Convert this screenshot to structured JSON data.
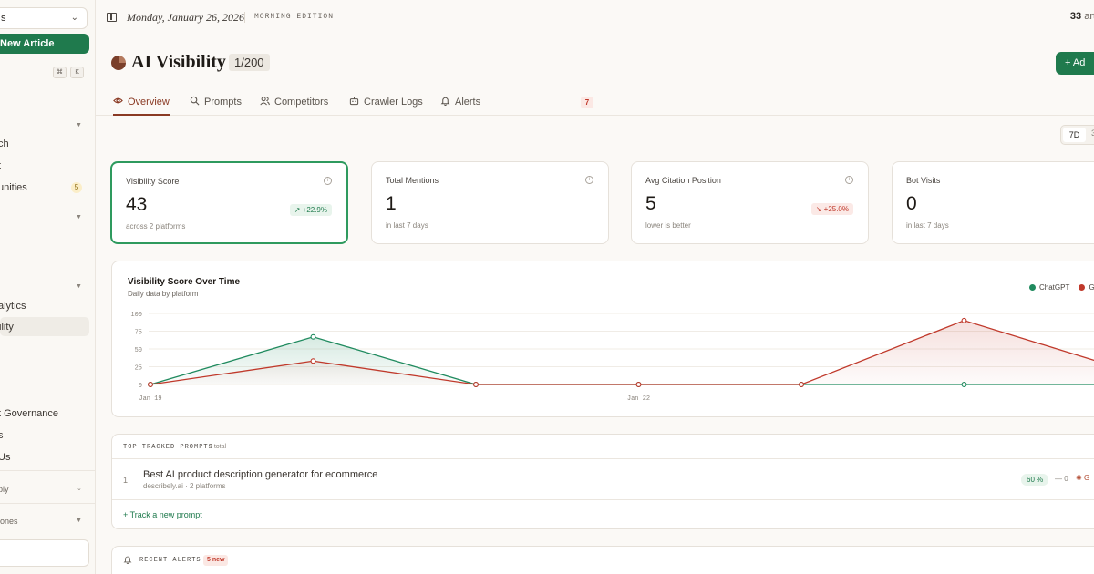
{
  "sidebar": {
    "workspace": "s",
    "new_article": "New Article",
    "shortcut": [
      "⌘",
      "K"
    ],
    "items": [
      {
        "label": "ch"
      },
      {
        "label": "t"
      },
      {
        "label": "unities",
        "badge": "5"
      },
      {
        "label": "alytics"
      },
      {
        "label": "ility",
        "active": true
      },
      {
        "label": "t Governance"
      },
      {
        "label": "s"
      },
      {
        "label": " Us"
      }
    ],
    "footer_items": [
      {
        "label": "ply"
      },
      {
        "label": "iones"
      }
    ]
  },
  "topbar": {
    "date": "Monday, January 26, 2026",
    "edition": "MORNING EDITION",
    "article_count": "33",
    "article_suffix": "artic"
  },
  "header": {
    "title": "AI Visibility",
    "quota": "1/200",
    "add_label": "Ad"
  },
  "tabs": [
    {
      "label": "Overview",
      "icon": "eye-icon",
      "active": true
    },
    {
      "label": "Prompts",
      "icon": "search-icon"
    },
    {
      "label": "Competitors",
      "icon": "users-icon"
    },
    {
      "label": "Crawler Logs",
      "icon": "bot-icon"
    },
    {
      "label": "Alerts",
      "icon": "bell-icon",
      "badge": "7"
    }
  ],
  "range": {
    "selected": "7D",
    "other": "3"
  },
  "cards": [
    {
      "label": "Visibility Score",
      "value": "43",
      "sub": "across 2 platforms",
      "delta": "+22.9%",
      "trend": "up"
    },
    {
      "label": "Total Mentions",
      "value": "1",
      "sub": "in last 7 days"
    },
    {
      "label": "Avg Citation Position",
      "value": "5",
      "sub": "lower is better",
      "delta": "+25.0%",
      "trend": "down"
    },
    {
      "label": "Bot Visits",
      "value": "0",
      "sub": "in last 7 days"
    }
  ],
  "chart": {
    "title": "Visibility Score Over Time",
    "subtitle": "Daily data by platform",
    "legend": [
      "ChatGPT",
      "G"
    ]
  },
  "chart_data": {
    "type": "line",
    "x": [
      "Jan 19",
      "Jan 20",
      "Jan 21",
      "Jan 22",
      "Jan 23",
      "Jan 24",
      "Jan 25"
    ],
    "x_tick_labels": [
      "Jan 19",
      "Jan 22"
    ],
    "y_ticks": [
      100,
      75,
      50,
      25,
      0
    ],
    "ylim": [
      0,
      100
    ],
    "series": [
      {
        "name": "ChatGPT",
        "color": "#1f8a5e",
        "values": [
          0,
          67,
          0,
          0,
          0,
          0,
          0
        ]
      },
      {
        "name": "G",
        "color": "#c0392b",
        "values": [
          0,
          33,
          0,
          0,
          0,
          90,
          20
        ]
      }
    ],
    "grid": true,
    "legend_position": "top-right"
  },
  "prompts": {
    "heading": "TOP TRACKED PROMPTS",
    "count": "1 total",
    "rows": [
      {
        "index": "1",
        "title": "Best AI product description generator for ecommerce",
        "sub": "describely.ai · 2 platforms",
        "pct": "60 %",
        "change": "— 0",
        "platform": "G"
      }
    ],
    "track_link": "+ Track a new prompt"
  },
  "alerts": {
    "heading": "RECENT ALERTS",
    "badge": "5 new"
  }
}
